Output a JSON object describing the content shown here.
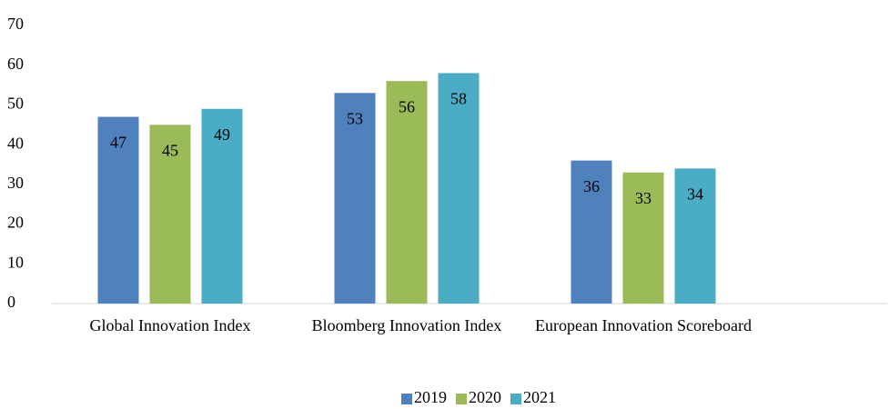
{
  "chart_data": {
    "type": "bar",
    "categories": [
      "Global Innovation Index",
      "Bloomberg Innovation Index",
      "European Innovation Scoreboard"
    ],
    "series": [
      {
        "name": "2019",
        "color": "#4f81bd",
        "values": [
          47,
          53,
          36
        ]
      },
      {
        "name": "2020",
        "color": "#9bbb59",
        "values": [
          45,
          56,
          33
        ]
      },
      {
        "name": "2021",
        "color": "#4bacc6",
        "values": [
          49,
          58,
          34
        ]
      }
    ],
    "ylim": [
      0,
      70
    ],
    "yticks": [
      0,
      10,
      20,
      30,
      40,
      50,
      60,
      70
    ],
    "grid": false,
    "legend": "bottom",
    "data_labels": true
  }
}
